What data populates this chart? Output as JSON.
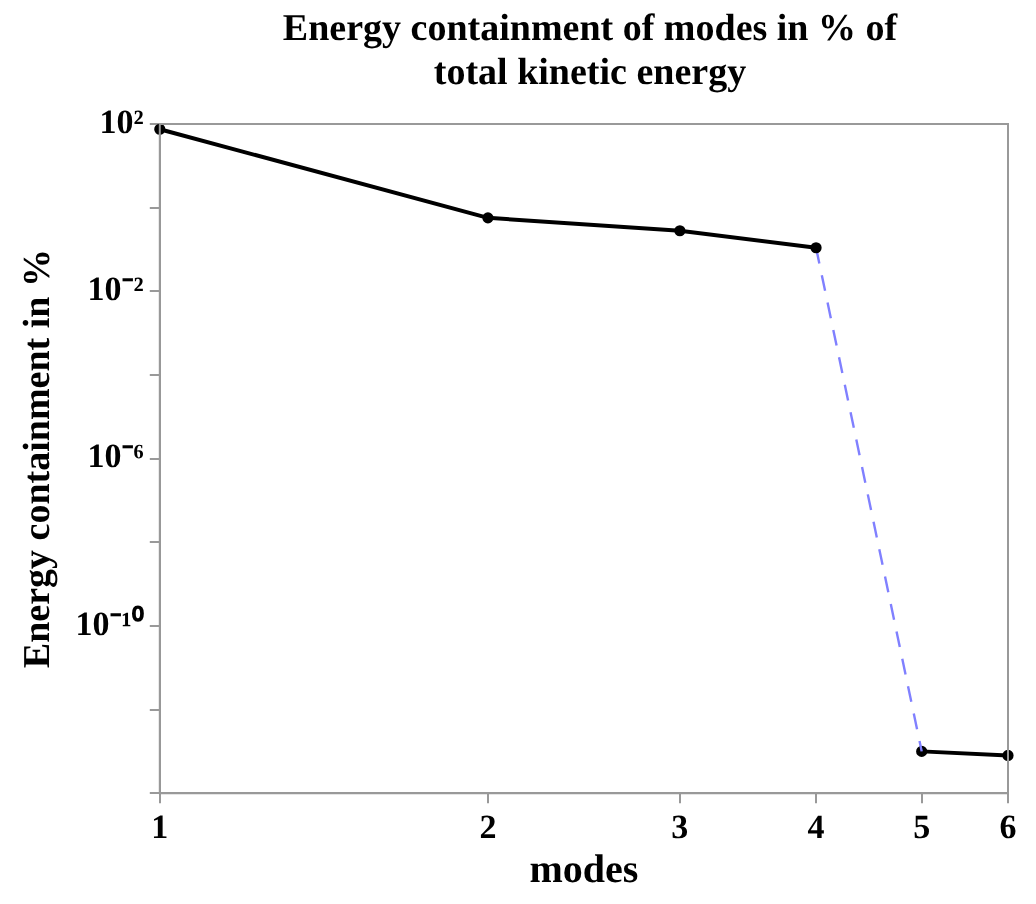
{
  "chart_data": {
    "type": "line",
    "title": "Energy containment of modes in % of total kinetic energy",
    "xlabel": "modes",
    "ylabel": "Energy containment in %",
    "log": "xy",
    "xlim": [
      1,
      6
    ],
    "xticks": [
      1,
      2,
      3,
      4,
      5,
      6
    ],
    "ylim": [
      1e-14,
      100
    ],
    "yticks": [
      {
        "value": 1e-14,
        "label": null
      },
      {
        "value": 1e-12,
        "label": null
      },
      {
        "value": 1e-10,
        "label": "10⁻¹⁰"
      },
      {
        "value": 1e-08,
        "label": null
      },
      {
        "value": 1e-06,
        "label": "10⁻⁶"
      },
      {
        "value": 0.0001,
        "label": null
      },
      {
        "value": 0.01,
        "label": "10⁻²"
      },
      {
        "value": 1,
        "label": null
      },
      {
        "value": 100,
        "label": "10²"
      }
    ],
    "grid": false,
    "legend": false,
    "series": [
      {
        "x": [
          1,
          2,
          3,
          4
        ],
        "values": [
          75,
          0.57,
          0.28,
          0.11
        ],
        "color": "#000000",
        "marker": "circle",
        "line_style": "solid"
      },
      {
        "x": [
          4,
          5
        ],
        "values": [
          0.11,
          1e-13
        ],
        "color": "#8080ff",
        "marker": "none",
        "line_style": "dashed"
      },
      {
        "x": [
          5,
          6
        ],
        "values": [
          1e-13,
          8e-14
        ],
        "color": "#000000",
        "marker": "circle",
        "line_style": "solid"
      }
    ]
  }
}
